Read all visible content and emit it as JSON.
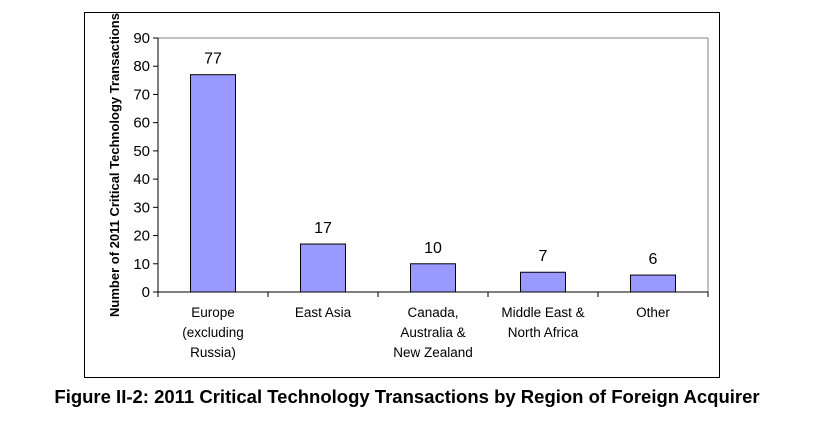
{
  "caption": "Figure II-2: 2011 Critical Technology Transactions by Region of Foreign Acquirer",
  "chart_data": {
    "type": "bar",
    "title": "",
    "xlabel": "",
    "ylabel": "Number of 2011 Critical Technology Transactions",
    "categories": [
      [
        "Europe",
        "(excluding",
        "Russia)"
      ],
      [
        "East Asia"
      ],
      [
        "Canada,",
        "Australia &",
        "New Zealand"
      ],
      [
        "Middle East &",
        "North Africa"
      ],
      [
        "Other"
      ]
    ],
    "values": [
      77,
      17,
      10,
      7,
      6
    ],
    "data_labels": [
      "77",
      "17",
      "10",
      "7",
      "6"
    ],
    "ylim": [
      0,
      90
    ],
    "yticks": [
      0,
      10,
      20,
      30,
      40,
      50,
      60,
      70,
      80,
      90
    ],
    "grid": false,
    "legend": "none",
    "colors": {
      "bar_fill": "#9999ff",
      "bar_stroke": "#000000",
      "axis": "#808080",
      "text": "#000000"
    }
  }
}
